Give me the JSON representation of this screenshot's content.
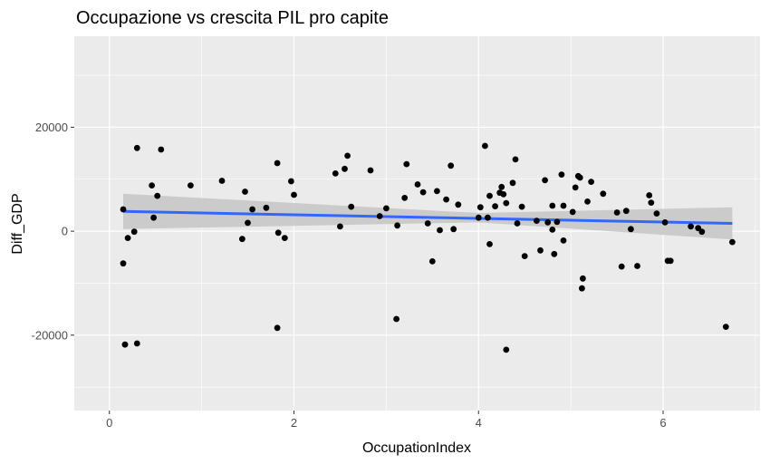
{
  "chart_data": {
    "type": "scatter",
    "title": "Occupazione vs crescita PIL pro capite",
    "xlabel": "OccupationIndex",
    "ylabel": "Diff_GDP",
    "xlim": [
      -0.38,
      7.05
    ],
    "ylim": [
      -34500,
      37500
    ],
    "x_ticks": [
      0,
      2,
      4,
      6
    ],
    "x_tick_labels": [
      "0",
      "2",
      "4",
      "6"
    ],
    "y_ticks": [
      -20000,
      0,
      20000
    ],
    "y_tick_labels": [
      "-20000",
      "0",
      "20000"
    ],
    "grid": true,
    "legend": "none",
    "colors": {
      "panel_background": "#ebebeb",
      "grid_major": "#ffffff",
      "points": "#000000",
      "fit_line": "#3366ff",
      "confidence_band": "#c8c8c8"
    },
    "fit": {
      "method": "linear",
      "x": [
        0.15,
        6.75
      ],
      "y": [
        3800,
        1500
      ],
      "band_upper": [
        7200,
        4600
      ],
      "band_lower": [
        400,
        -1600
      ],
      "band_center_upper": 3500,
      "band_center_lower": 1700,
      "band_center_x": 4.0
    },
    "series": [
      {
        "points": [
          [
            0.15,
            4200
          ],
          [
            0.15,
            -6200
          ],
          [
            0.17,
            -21800
          ],
          [
            0.2,
            -1300
          ],
          [
            0.27,
            -100
          ],
          [
            0.3,
            16000
          ],
          [
            0.3,
            -21600
          ],
          [
            0.46,
            8800
          ],
          [
            0.48,
            2600
          ],
          [
            0.52,
            6800
          ],
          [
            0.56,
            15700
          ],
          [
            0.88,
            8800
          ],
          [
            1.22,
            9700
          ],
          [
            1.44,
            -1500
          ],
          [
            1.47,
            7600
          ],
          [
            1.5,
            1600
          ],
          [
            1.55,
            4200
          ],
          [
            1.7,
            4500
          ],
          [
            1.82,
            13100
          ],
          [
            1.82,
            -18600
          ],
          [
            1.83,
            -300
          ],
          [
            1.9,
            -1300
          ],
          [
            1.97,
            9600
          ],
          [
            2.0,
            7000
          ],
          [
            2.45,
            11100
          ],
          [
            2.5,
            900
          ],
          [
            2.55,
            12000
          ],
          [
            2.58,
            14500
          ],
          [
            2.62,
            4700
          ],
          [
            2.83,
            11700
          ],
          [
            2.93,
            2900
          ],
          [
            3.0,
            4400
          ],
          [
            3.11,
            -16900
          ],
          [
            3.12,
            1100
          ],
          [
            3.2,
            6400
          ],
          [
            3.22,
            12900
          ],
          [
            3.34,
            9000
          ],
          [
            3.4,
            7500
          ],
          [
            3.45,
            1500
          ],
          [
            3.5,
            -5800
          ],
          [
            3.55,
            7700
          ],
          [
            3.58,
            200
          ],
          [
            3.65,
            6100
          ],
          [
            3.7,
            12600
          ],
          [
            3.73,
            400
          ],
          [
            3.78,
            5100
          ],
          [
            4.0,
            2600
          ],
          [
            4.02,
            4600
          ],
          [
            4.07,
            16400
          ],
          [
            4.1,
            2600
          ],
          [
            4.12,
            6800
          ],
          [
            4.12,
            -2500
          ],
          [
            4.18,
            4800
          ],
          [
            4.23,
            7400
          ],
          [
            4.25,
            8500
          ],
          [
            4.27,
            7100
          ],
          [
            4.3,
            -22800
          ],
          [
            4.3,
            5400
          ],
          [
            4.37,
            9300
          ],
          [
            4.4,
            13800
          ],
          [
            4.42,
            1500
          ],
          [
            4.47,
            4700
          ],
          [
            4.5,
            -4800
          ],
          [
            4.63,
            2000
          ],
          [
            4.67,
            -3700
          ],
          [
            4.72,
            9800
          ],
          [
            4.75,
            1700
          ],
          [
            4.8,
            4900
          ],
          [
            4.8,
            300
          ],
          [
            4.82,
            -4400
          ],
          [
            4.85,
            1800
          ],
          [
            4.9,
            10900
          ],
          [
            4.92,
            4900
          ],
          [
            4.92,
            -1800
          ],
          [
            5.02,
            3700
          ],
          [
            5.05,
            8400
          ],
          [
            5.08,
            10600
          ],
          [
            5.1,
            10300
          ],
          [
            5.12,
            -11000
          ],
          [
            5.13,
            -9100
          ],
          [
            5.18,
            5700
          ],
          [
            5.22,
            9500
          ],
          [
            5.35,
            7200
          ],
          [
            5.5,
            3600
          ],
          [
            5.55,
            -6800
          ],
          [
            5.6,
            3900
          ],
          [
            5.65,
            400
          ],
          [
            5.72,
            -6700
          ],
          [
            5.85,
            6900
          ],
          [
            5.87,
            5500
          ],
          [
            5.93,
            3400
          ],
          [
            6.02,
            1700
          ],
          [
            6.05,
            -5700
          ],
          [
            6.08,
            -5700
          ],
          [
            6.3,
            900
          ],
          [
            6.38,
            600
          ],
          [
            6.42,
            -100
          ],
          [
            6.68,
            -18400
          ],
          [
            6.75,
            -2100
          ]
        ]
      }
    ]
  }
}
